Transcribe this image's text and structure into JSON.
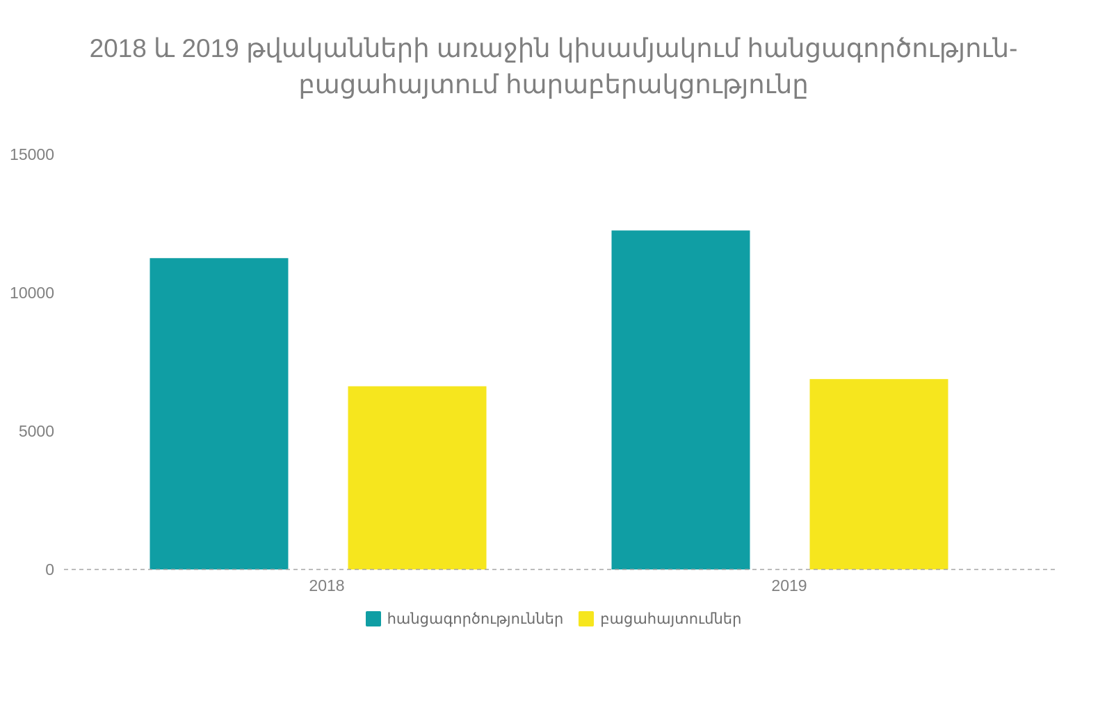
{
  "chart_data": {
    "type": "bar",
    "title_lines": [
      "2018 և 2019 թվականների առաջին կիսամյակում հանցագործություն-",
      "բացահայտում հարաբերակցությունը"
    ],
    "categories": [
      "2018",
      "2019"
    ],
    "series": [
      {
        "name": "հանցագործություններ",
        "color": "#109ea4",
        "values": [
          11250,
          12250
        ]
      },
      {
        "name": "բացահայտումներ",
        "color": "#f6e61e",
        "values": [
          6620,
          6880
        ]
      }
    ],
    "yticks": [
      0,
      5000,
      10000,
      15000
    ],
    "ylim": [
      0,
      15000
    ],
    "xlabel": "",
    "ylabel": "",
    "grid": "baseline only (dashed)",
    "legend": "bottom-center"
  }
}
